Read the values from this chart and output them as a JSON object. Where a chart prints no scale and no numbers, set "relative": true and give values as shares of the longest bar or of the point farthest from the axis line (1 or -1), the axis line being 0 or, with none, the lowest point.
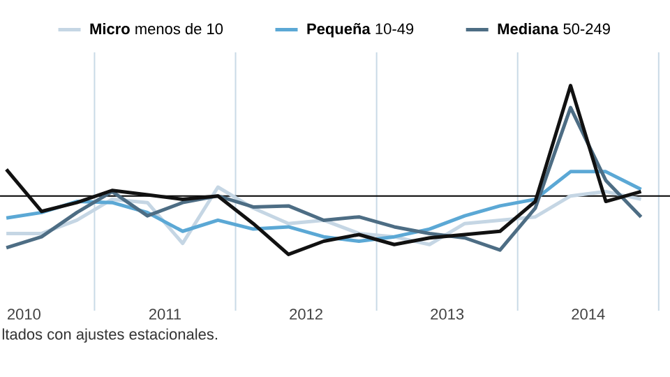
{
  "chart_data": {
    "type": "line",
    "relative": true,
    "legend": "top",
    "grid": "x",
    "x": [
      2010.375,
      2010.625,
      2010.875,
      2011.125,
      2011.375,
      2011.625,
      2011.875,
      2012.125,
      2012.375,
      2012.625,
      2012.875,
      2013.125,
      2013.375,
      2013.625,
      2013.875,
      2014.125,
      2014.375,
      2014.625,
      2014.875
    ],
    "xlim": [
      2010.33,
      2015.08
    ],
    "xticks": [
      {
        "value": 2010.5,
        "label": "2010"
      },
      {
        "value": 2011,
        "label": null
      },
      {
        "value": 2011.5,
        "label": "2011"
      },
      {
        "value": 2012,
        "label": null
      },
      {
        "value": 2012.5,
        "label": "2012"
      },
      {
        "value": 2013,
        "label": null
      },
      {
        "value": 2013.5,
        "label": "2013"
      },
      {
        "value": 2014,
        "label": null
      },
      {
        "value": 2014.5,
        "label": "2014"
      },
      {
        "value": 2015,
        "label": null
      }
    ],
    "series": [
      {
        "name": "**Micro** menos de 10",
        "color": "#c5d6e4",
        "values": [
          -0.34,
          -0.34,
          -0.22,
          -0.03,
          -0.06,
          -0.43,
          0.08,
          -0.11,
          -0.25,
          -0.22,
          -0.34,
          -0.37,
          -0.44,
          -0.25,
          -0.22,
          -0.19,
          0,
          0.04,
          -0.03
        ]
      },
      {
        "name": "**Pequeña** 10-49",
        "color": "#5ba8d5",
        "values": [
          -0.2,
          -0.15,
          -0.05,
          -0.06,
          -0.15,
          -0.32,
          -0.22,
          -0.3,
          -0.28,
          -0.37,
          -0.41,
          -0.37,
          -0.3,
          -0.18,
          -0.09,
          -0.03,
          0.22,
          0.22,
          0.06
        ]
      },
      {
        "name": "**Mediana** 50-249",
        "color": "#4d6d84",
        "values": [
          -0.47,
          -0.37,
          -0.15,
          0.04,
          -0.18,
          -0.06,
          0,
          -0.1,
          -0.09,
          -0.22,
          -0.19,
          -0.28,
          -0.34,
          -0.38,
          -0.49,
          -0.11,
          0.8,
          0.14,
          -0.19
        ]
      },
      {
        "color": "#111111",
        "values": [
          0.24,
          -0.14,
          -0.06,
          0.05,
          0.01,
          -0.03,
          0,
          -0.25,
          -0.53,
          -0.41,
          -0.35,
          -0.44,
          -0.38,
          -0.35,
          -0.32,
          -0.05,
          1,
          -0.05,
          0.04
        ]
      }
    ],
    "ref_lines": [
      {
        "axis": "y",
        "value": 0,
        "color": "#000000"
      }
    ],
    "annotations": [
      "ltados con ajustes estacionales."
    ]
  }
}
